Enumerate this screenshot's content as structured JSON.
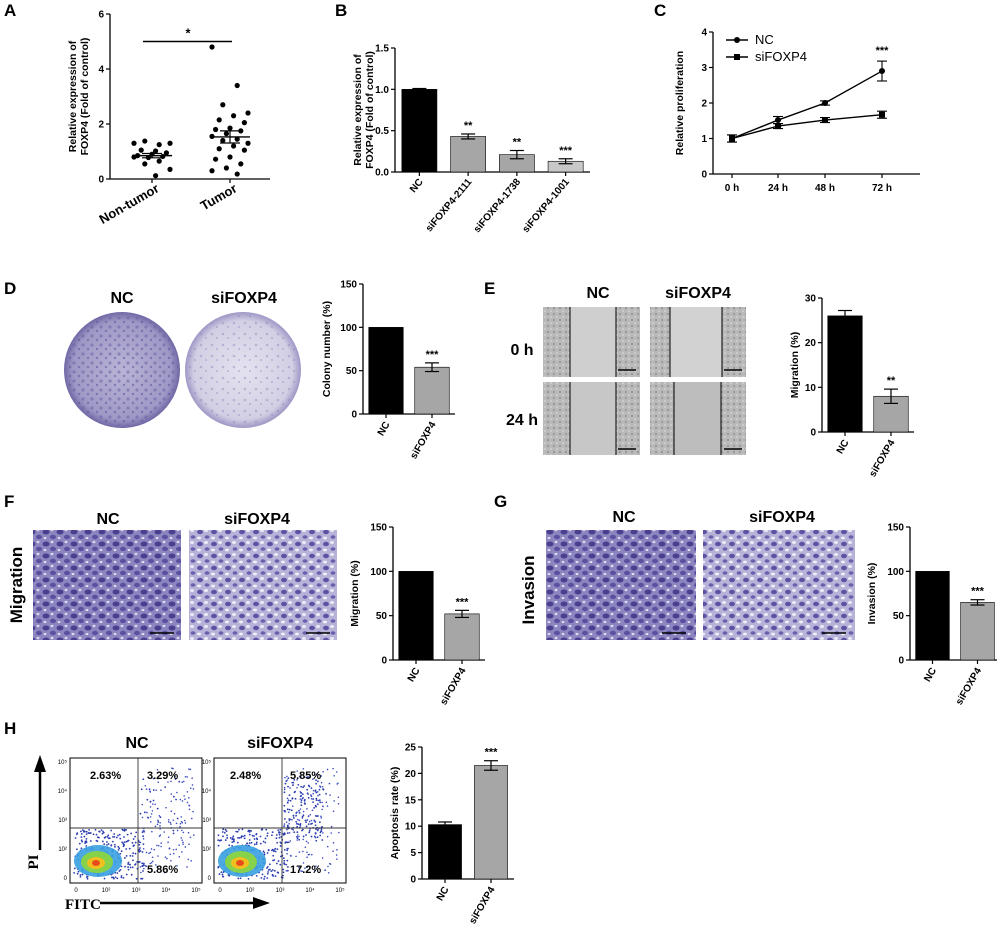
{
  "panels": {
    "A": "A",
    "B": "B",
    "C": "C",
    "D": "D",
    "E": "E",
    "F": "F",
    "G": "G",
    "H": "H"
  },
  "conditions": {
    "nc": "NC",
    "sifoxp4": "siFOXP4",
    "t0": "0 h",
    "t24": "24 h"
  },
  "side_labels": {
    "migration": "Migration",
    "invasion": "Invasion",
    "pi": "PI",
    "fitc": "FITC"
  },
  "colors": {
    "black_bar": "#000000",
    "grey_bar": "#a6a6a6",
    "light_bar": "#c8c8c8",
    "purple": "#5a4f9c"
  },
  "flow_quadrants": {
    "nc": {
      "ul": "2.63%",
      "ur": "3.29%",
      "lr": "5.86%"
    },
    "sifoxp4": {
      "ul": "2.48%",
      "ur": "5.85%",
      "lr": "17.2%"
    },
    "tick_labels_x": [
      "0",
      "10²",
      "10³",
      "10⁴",
      "10⁵"
    ],
    "tick_labels_y": [
      "0",
      "10²",
      "10³",
      "10⁴",
      "10⁵"
    ]
  },
  "chart_data": [
    {
      "id": "A",
      "type": "scatter",
      "ylabel": "Relative expression of FOXP4 (Fold of control)",
      "ylim": [
        0,
        6
      ],
      "yticks": [
        "0",
        "2",
        "4",
        "6"
      ],
      "categories": [
        "Non-tumor",
        "Tumor"
      ],
      "points": [
        [
          1.3,
          1.25,
          1.38,
          1.3,
          1.02,
          1.05,
          0.95,
          0.9,
          0.85,
          0.82,
          0.78,
          0.8,
          0.65,
          0.55,
          0.35,
          0.12
        ],
        [
          4.8,
          3.4,
          2.7,
          2.4,
          2.3,
          2.15,
          2.05,
          1.85,
          1.8,
          1.75,
          1.65,
          1.55,
          1.45,
          1.4,
          1.3,
          1.2,
          1.1,
          1.05,
          0.8,
          0.72,
          0.55,
          0.4,
          0.3,
          0.18
        ]
      ],
      "mean": [
        0.85,
        1.53
      ],
      "sem": [
        0.08,
        0.22
      ],
      "significance": "*"
    },
    {
      "id": "B",
      "type": "bar",
      "ylabel": "Relative expression of FOXP4 (Fold of control)",
      "ylim": [
        0,
        1.5
      ],
      "yticks": [
        "0.0",
        "0.5",
        "1.0",
        "1.5"
      ],
      "categories": [
        "NC",
        "siFOXP4-2111",
        "siFOXP4-1738",
        "siFOXP4-1001"
      ],
      "values": [
        1.0,
        0.43,
        0.21,
        0.13
      ],
      "errors": [
        0.01,
        0.03,
        0.05,
        0.03
      ],
      "significance": [
        "",
        "**",
        "**",
        "***"
      ]
    },
    {
      "id": "C",
      "type": "line",
      "ylabel": "Relative proliferation",
      "ylim": [
        0,
        4
      ],
      "yticks": [
        "0",
        "1",
        "2",
        "3",
        "4"
      ],
      "x": [
        "0 h",
        "24 h",
        "48 h",
        "72 h"
      ],
      "series": [
        {
          "name": "NC",
          "values": [
            1.0,
            1.52,
            2.0,
            2.9
          ],
          "errors": [
            0.1,
            0.1,
            0.06,
            0.28
          ]
        },
        {
          "name": "siFOXP4",
          "values": [
            1.0,
            1.35,
            1.52,
            1.67
          ],
          "errors": [
            0.1,
            0.07,
            0.07,
            0.1
          ]
        }
      ],
      "significance": "***"
    },
    {
      "id": "D",
      "type": "bar",
      "ylabel": "Colony number (%)",
      "ylim": [
        0,
        150
      ],
      "yticks": [
        "0",
        "50",
        "100",
        "150"
      ],
      "categories": [
        "NC",
        "siFOXP4"
      ],
      "values": [
        100,
        54
      ],
      "errors": [
        0,
        5
      ],
      "significance": [
        "",
        "***"
      ]
    },
    {
      "id": "E",
      "type": "bar",
      "ylabel": "Migration (%)",
      "ylim": [
        0,
        30
      ],
      "yticks": [
        "0",
        "10",
        "20",
        "30"
      ],
      "categories": [
        "NC",
        "siFOXP4"
      ],
      "values": [
        26,
        8
      ],
      "errors": [
        1.2,
        1.6
      ],
      "significance": [
        "",
        "**"
      ]
    },
    {
      "id": "F",
      "type": "bar",
      "ylabel": "Migration (%)",
      "ylim": [
        0,
        150
      ],
      "yticks": [
        "0",
        "50",
        "100",
        "150"
      ],
      "categories": [
        "NC",
        "siFOXP4"
      ],
      "values": [
        100,
        52
      ],
      "errors": [
        0,
        4
      ],
      "significance": [
        "",
        "***"
      ]
    },
    {
      "id": "G",
      "type": "bar",
      "ylabel": "Invasion (%)",
      "ylim": [
        0,
        150
      ],
      "yticks": [
        "0",
        "50",
        "100",
        "150"
      ],
      "categories": [
        "NC",
        "siFOXP4"
      ],
      "values": [
        100,
        65
      ],
      "errors": [
        0,
        3
      ],
      "significance": [
        "",
        "***"
      ]
    },
    {
      "id": "H",
      "type": "bar",
      "ylabel": "Apoptosis rate (%)",
      "ylim": [
        0,
        25
      ],
      "yticks": [
        "0",
        "5",
        "10",
        "15",
        "20",
        "25"
      ],
      "categories": [
        "NC",
        "siFOXP4"
      ],
      "values": [
        10.3,
        21.5
      ],
      "errors": [
        0.5,
        0.9
      ],
      "significance": [
        "",
        "***"
      ]
    }
  ]
}
